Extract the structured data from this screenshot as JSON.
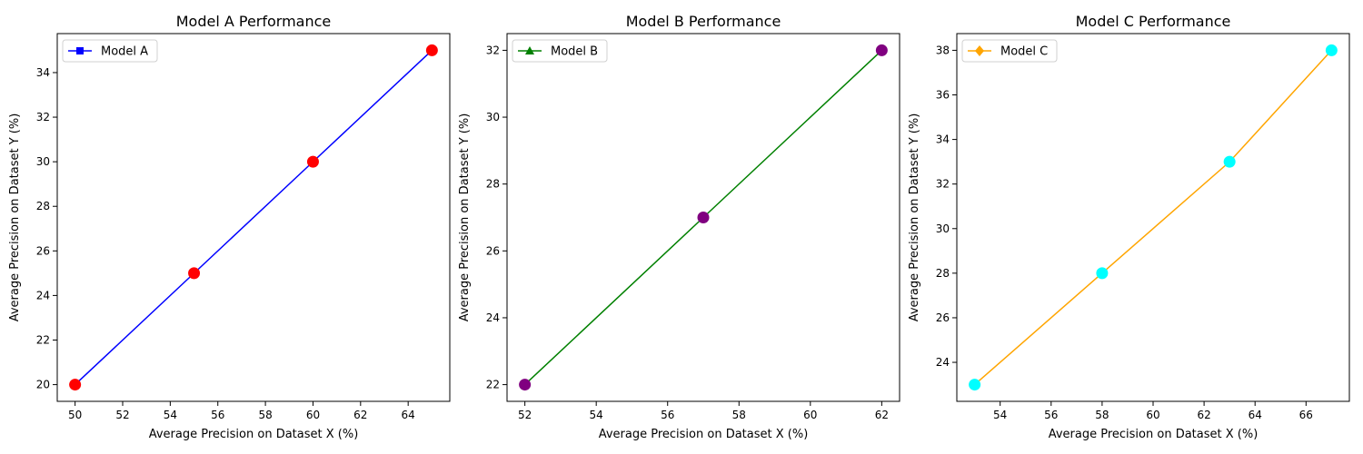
{
  "chart_data": [
    {
      "type": "line",
      "title": "Model A Performance",
      "xlabel": "Average Precision on Dataset X (%)",
      "ylabel": "Average Precision on Dataset Y (%)",
      "xlim": [
        49.25,
        65.75
      ],
      "ylim": [
        19.25,
        35.75
      ],
      "xticks": [
        50,
        52,
        54,
        56,
        58,
        60,
        62,
        64
      ],
      "yticks": [
        20,
        22,
        24,
        26,
        28,
        30,
        32,
        34
      ],
      "legend_position": "upper-left",
      "grid": false,
      "series": [
        {
          "name": "Model A",
          "x": [
            50,
            55,
            60,
            65
          ],
          "y": [
            20,
            25,
            30,
            35
          ],
          "line_color": "#0000ff",
          "legend_marker": "square",
          "point_color": "#ff0000"
        }
      ]
    },
    {
      "type": "line",
      "title": "Model B Performance",
      "xlabel": "Average Precision on Dataset X (%)",
      "ylabel": "Average Precision on Dataset Y (%)",
      "xlim": [
        51.5,
        62.5
      ],
      "ylim": [
        21.5,
        32.5
      ],
      "xticks": [
        52,
        54,
        56,
        58,
        60,
        62
      ],
      "yticks": [
        22,
        24,
        26,
        28,
        30,
        32
      ],
      "legend_position": "upper-left",
      "grid": false,
      "series": [
        {
          "name": "Model B",
          "x": [
            52,
            57,
            62
          ],
          "y": [
            22,
            27,
            32
          ],
          "line_color": "#008000",
          "legend_marker": "triangle",
          "point_color": "#800080"
        }
      ]
    },
    {
      "type": "line",
      "title": "Model C Performance",
      "xlabel": "Average Precision on Dataset X (%)",
      "ylabel": "Average Precision on Dataset Y (%)",
      "xlim": [
        52.3,
        67.7
      ],
      "ylim": [
        22.25,
        38.75
      ],
      "xticks": [
        54,
        56,
        58,
        60,
        62,
        64,
        66
      ],
      "yticks": [
        24,
        26,
        28,
        30,
        32,
        34,
        36,
        38
      ],
      "legend_position": "upper-left",
      "grid": false,
      "series": [
        {
          "name": "Model C",
          "x": [
            53,
            58,
            63,
            67
          ],
          "y": [
            23,
            28,
            33,
            38
          ],
          "line_color": "#ffa500",
          "legend_marker": "diamond",
          "point_color": "#00ffff"
        }
      ]
    }
  ]
}
